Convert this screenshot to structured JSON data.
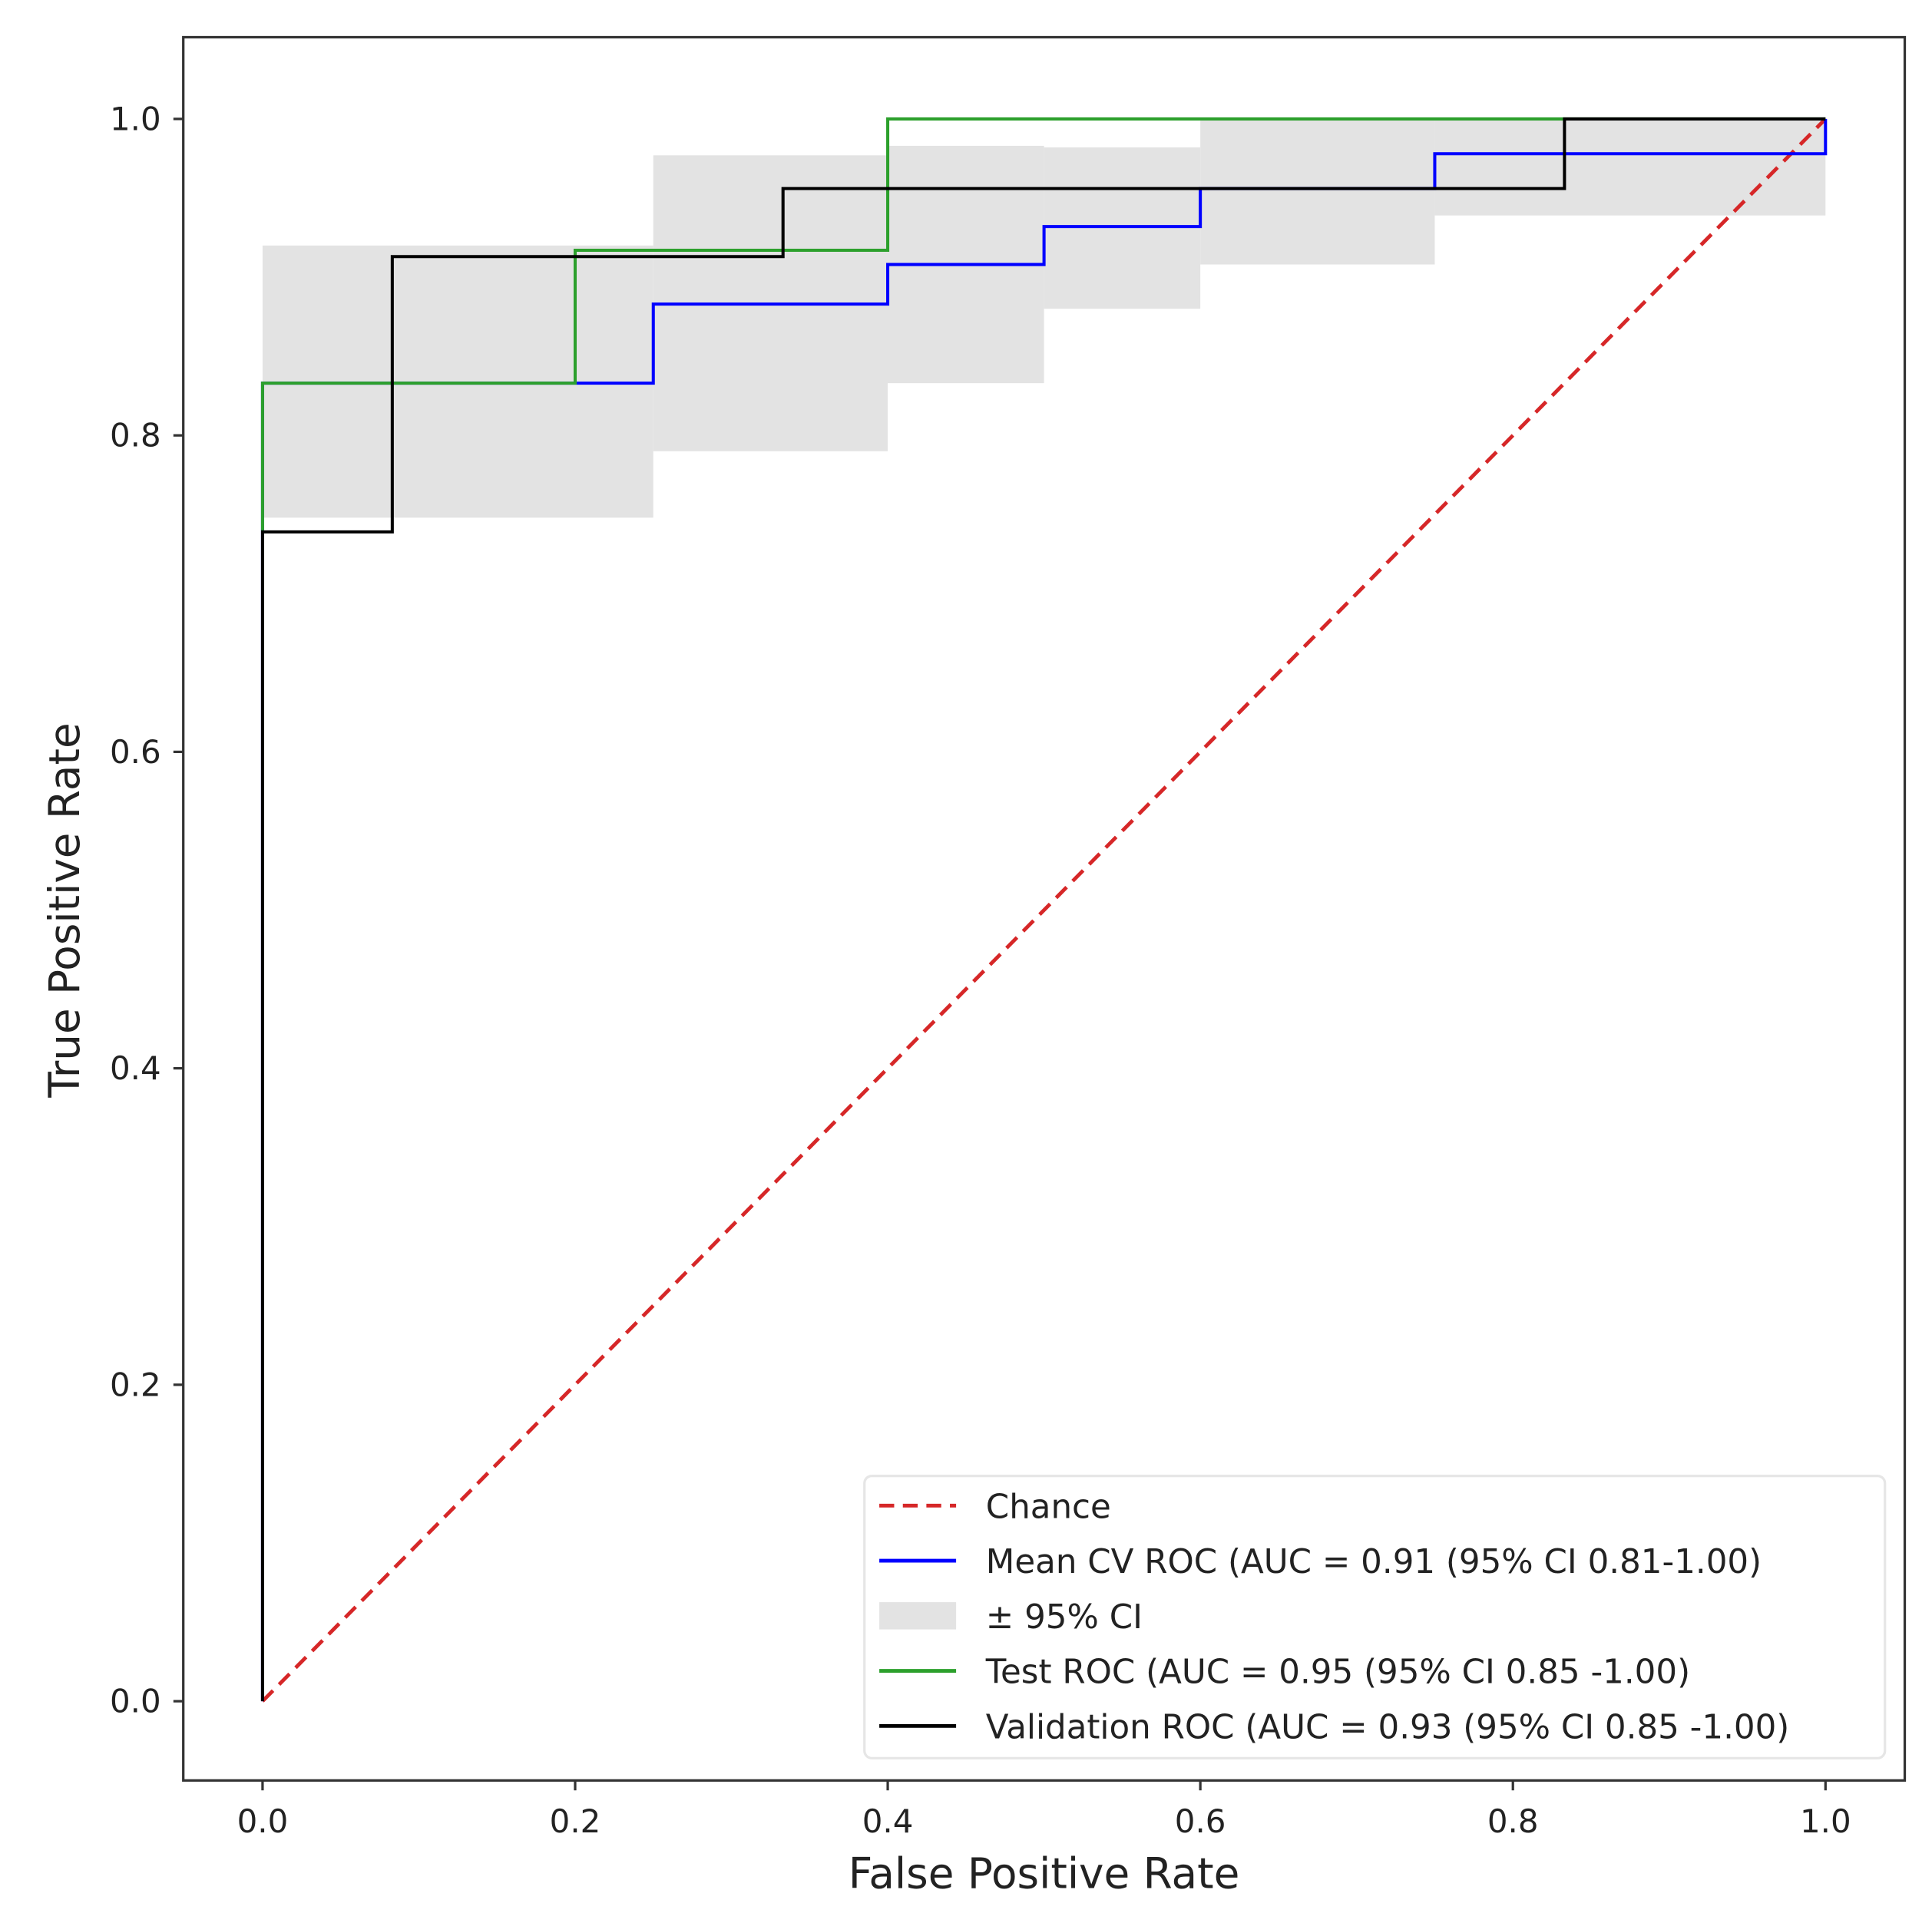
{
  "chart_data": {
    "type": "line",
    "title": "",
    "xlabel": "False Positive Rate",
    "ylabel": "True Positive Rate",
    "xlim": [
      -0.05,
      1.05
    ],
    "ylim": [
      -0.05,
      1.05
    ],
    "grid": false,
    "legend_placement": "lower-right",
    "xticks": [
      "0.0",
      "0.2",
      "0.4",
      "0.6",
      "0.8",
      "1.0"
    ],
    "yticks": [
      "0.0",
      "0.2",
      "0.4",
      "0.6",
      "0.8",
      "1.0"
    ],
    "series": [
      {
        "name": "Chance",
        "color": "#d62728",
        "style": "dashed",
        "x": [
          0,
          1
        ],
        "y": [
          0,
          1
        ]
      },
      {
        "name": "Mean CV ROC (AUC = 0.91 (95% CI 0.81-1.00)",
        "color": "#0000ff",
        "style": "step",
        "x": [
          0,
          0,
          0.25,
          0.25,
          0.4,
          0.4,
          0.5,
          0.5,
          0.6,
          0.6,
          0.75,
          0.75,
          1.0,
          1.0
        ],
        "y": [
          0,
          0.833,
          0.833,
          0.883,
          0.883,
          0.908,
          0.908,
          0.932,
          0.932,
          0.956,
          0.956,
          0.978,
          0.978,
          1.0
        ]
      },
      {
        "name": "Test ROC (AUC = 0.95 (95% CI 0.85 -1.00)",
        "color": "#2ca02c",
        "style": "step",
        "x": [
          0,
          0,
          0.2,
          0.2,
          0.4,
          0.4,
          1.0
        ],
        "y": [
          0.74,
          0.833,
          0.833,
          0.917,
          0.917,
          1.0,
          1.0
        ]
      },
      {
        "name": "Validation ROC (AUC = 0.93 (95% CI 0.85 -1.00)",
        "color": "#000000",
        "style": "step",
        "x": [
          0,
          0,
          0.083,
          0.083,
          0.333,
          0.333,
          0.833,
          0.833,
          1.0
        ],
        "y": [
          0,
          0.739,
          0.739,
          0.913,
          0.913,
          0.956,
          0.956,
          1.0,
          1.0
        ]
      }
    ],
    "ci_band": {
      "name": "± 95% CI",
      "color": "#e3e3e3",
      "segments": [
        {
          "x0": 0,
          "x1": 0.25,
          "lower": 0.748,
          "upper": 0.92
        },
        {
          "x0": 0.25,
          "x1": 0.4,
          "lower": 0.79,
          "upper": 0.977
        },
        {
          "x0": 0.4,
          "x1": 0.5,
          "lower": 0.833,
          "upper": 0.983
        },
        {
          "x0": 0.5,
          "x1": 0.6,
          "lower": 0.88,
          "upper": 0.982
        },
        {
          "x0": 0.6,
          "x1": 0.75,
          "lower": 0.908,
          "upper": 1.0
        },
        {
          "x0": 0.75,
          "x1": 1.0,
          "lower": 0.939,
          "upper": 1.0
        }
      ]
    },
    "legend": [
      {
        "label": "Chance",
        "kind": "dashed",
        "color": "#d62728"
      },
      {
        "label": "Mean CV ROC (AUC = 0.91 (95% CI 0.81-1.00)",
        "kind": "line",
        "color": "#0000ff"
      },
      {
        "label": "± 95% CI",
        "kind": "patch",
        "color": "#e3e3e3"
      },
      {
        "label": "Test ROC (AUC = 0.95 (95% CI 0.85 -1.00)",
        "kind": "line",
        "color": "#2ca02c"
      },
      {
        "label": "Validation ROC (AUC = 0.93 (95% CI 0.85 -1.00)",
        "kind": "line",
        "color": "#000000"
      }
    ]
  }
}
